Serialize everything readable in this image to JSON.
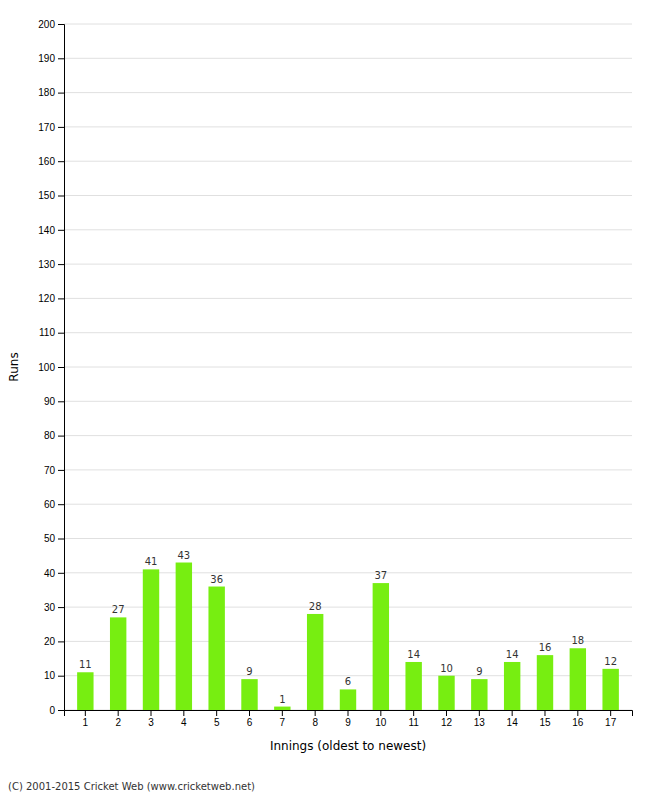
{
  "chart_data": {
    "type": "bar",
    "xlabel": "Innings (oldest to newest)",
    "ylabel": "Runs",
    "categories": [
      "1",
      "2",
      "3",
      "4",
      "5",
      "6",
      "7",
      "8",
      "9",
      "10",
      "11",
      "12",
      "13",
      "14",
      "15",
      "16",
      "17"
    ],
    "values": [
      11,
      27,
      41,
      43,
      36,
      9,
      1,
      28,
      6,
      37,
      14,
      10,
      9,
      14,
      16,
      18,
      12
    ],
    "color": "#77ee11",
    "ylim": [
      0,
      200
    ],
    "yticks": [
      0,
      10,
      20,
      30,
      40,
      50,
      60,
      70,
      80,
      90,
      100,
      110,
      120,
      130,
      140,
      150,
      160,
      170,
      180,
      190,
      200
    ],
    "grid": true,
    "data_labels": true,
    "annotations": [
      "(C) 2001-2015 Cricket Web (www.cricketweb.net)"
    ]
  }
}
